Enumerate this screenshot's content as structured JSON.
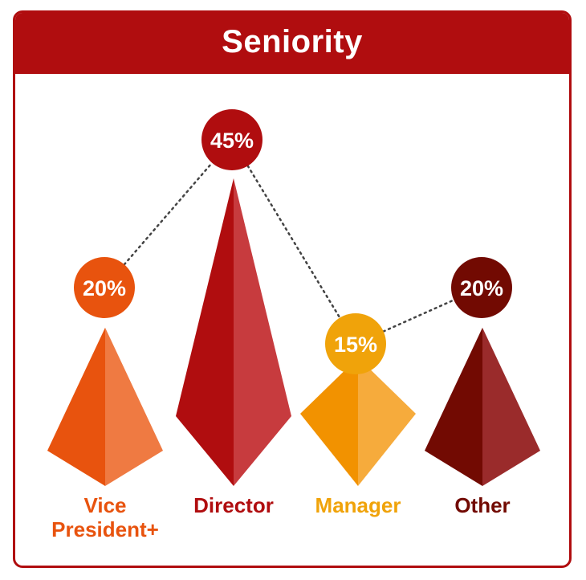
{
  "title": "Seniority",
  "colors": {
    "frame": "#b00d0f",
    "header_text": "#ffffff",
    "connector": "#444444"
  },
  "chart_data": {
    "type": "bar",
    "title": "Seniority",
    "unit": "%",
    "grid": false,
    "categories": [
      "Vice President+",
      "Director",
      "Manager",
      "Other"
    ],
    "labels": [
      [
        "Vice",
        "President+"
      ],
      [
        "Director"
      ],
      [
        "Manager"
      ],
      [
        "Other"
      ]
    ],
    "values": [
      20,
      45,
      15,
      20
    ],
    "value_labels": [
      "20%",
      "45%",
      "15%",
      "20%"
    ],
    "colors": [
      {
        "dark": "#e8530e",
        "light": "#ef7a42",
        "bubble": "#e8530e",
        "label": "#e8530e"
      },
      {
        "dark": "#b00d0f",
        "light": "#c73b3e",
        "bubble": "#b00d0f",
        "label": "#b00d0f"
      },
      {
        "dark": "#f29200",
        "light": "#f6ab3c",
        "bubble": "#f0a30a",
        "label": "#f0a30a"
      },
      {
        "dark": "#720a02",
        "light": "#9a2b2b",
        "bubble": "#720a02",
        "label": "#720a02"
      }
    ]
  }
}
